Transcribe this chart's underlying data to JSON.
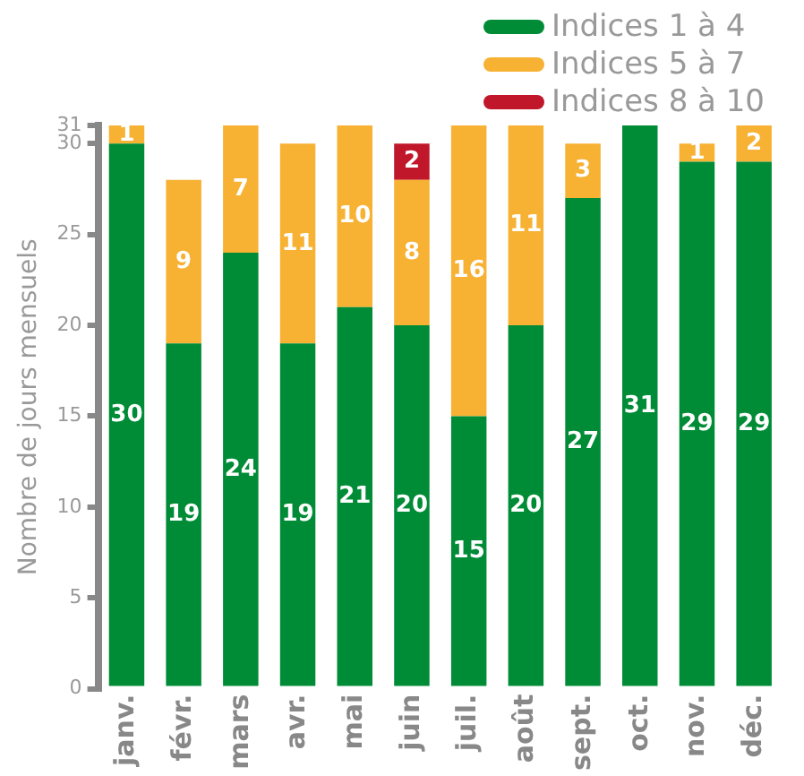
{
  "chart_data": {
    "type": "bar",
    "stacked": true,
    "ylabel": "Nombre de jours mensuels",
    "categories": [
      "janv.",
      "févr.",
      "mars",
      "avr.",
      "mai",
      "juin",
      "juil.",
      "août",
      "sept.",
      "oct.",
      "nov.",
      "déc."
    ],
    "series": [
      {
        "name": "Indices 1 à 4",
        "color": "#008c36",
        "values": [
          30,
          19,
          24,
          19,
          21,
          20,
          15,
          20,
          27,
          31,
          29,
          29
        ]
      },
      {
        "name": "Indices 5 à 7",
        "color": "#f7b133",
        "values": [
          1,
          9,
          7,
          11,
          10,
          8,
          16,
          11,
          3,
          0,
          1,
          2
        ],
        "value_labels": [
          "1",
          "9",
          "7",
          "11",
          "10",
          "8",
          "16",
          "11",
          "3",
          null,
          "1",
          "2"
        ]
      },
      {
        "name": "Indices 8 à 10",
        "color": "#c0172b",
        "values": [
          0,
          0,
          0,
          0,
          0,
          2,
          0,
          0,
          0,
          0,
          0,
          0
        ],
        "value_labels": [
          null,
          null,
          null,
          null,
          null,
          "2",
          null,
          null,
          null,
          null,
          null,
          null
        ]
      }
    ],
    "ylim": [
      0,
      31
    ],
    "yticks": [
      0,
      5,
      10,
      15,
      20,
      25,
      30,
      31
    ],
    "grid": false,
    "legend": "top right",
    "data_labels": true
  }
}
